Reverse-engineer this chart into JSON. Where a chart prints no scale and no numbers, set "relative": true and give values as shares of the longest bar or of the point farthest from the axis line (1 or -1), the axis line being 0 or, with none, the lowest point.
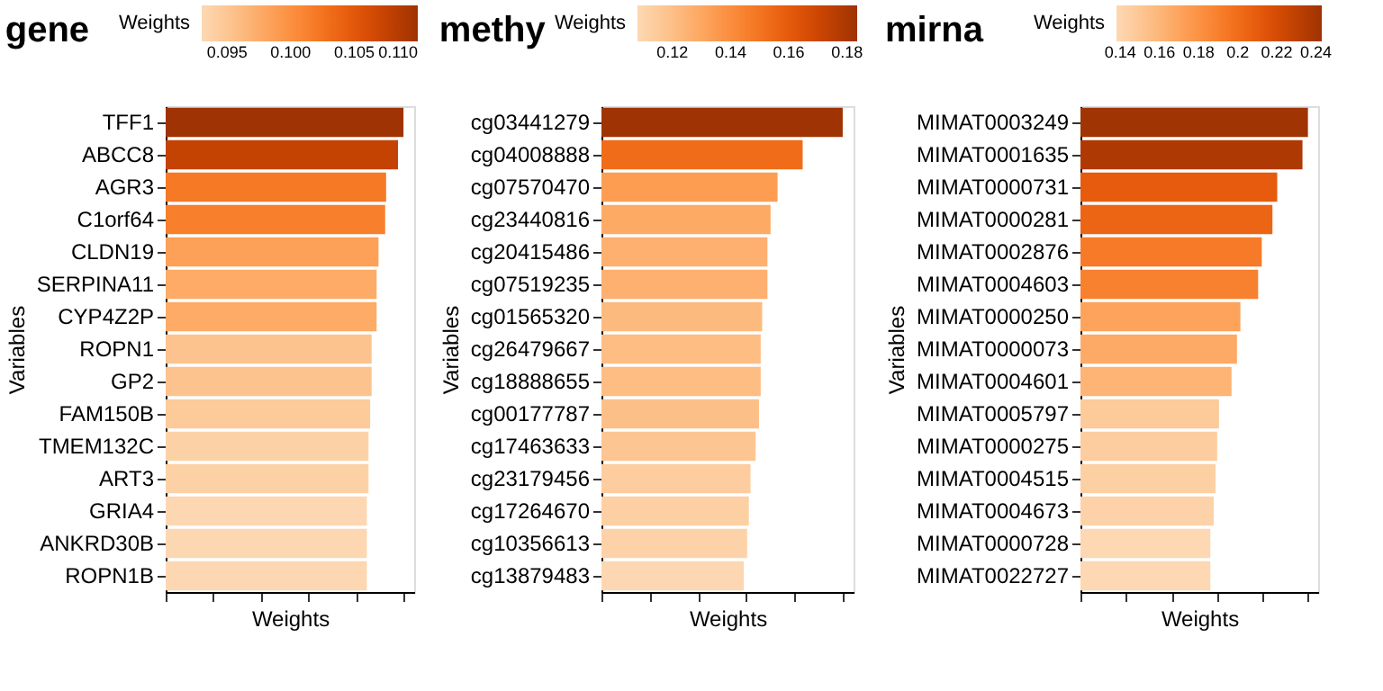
{
  "chart_data": [
    {
      "type": "bar",
      "orientation": "horizontal",
      "relative": true,
      "title": "gene",
      "xlabel": "Weights",
      "ylabel": "Variables",
      "clabel": "Weights",
      "grid": false,
      "tick_labels": "y",
      "categories": [
        "TFF1",
        "ABCC8",
        "AGR3",
        "C1orf64",
        "CLDN19",
        "SERPINA11",
        "CYP4Z2P",
        "ROPN1",
        "GP2",
        "FAM150B",
        "TMEM132C",
        "ART3",
        "GRIA4",
        "ANKRD30B",
        "ROPN1B"
      ],
      "values": [
        1,
        0.977,
        0.927,
        0.923,
        0.895,
        0.887,
        0.887,
        0.866,
        0.866,
        0.86,
        0.853,
        0.853,
        0.846,
        0.846,
        0.846
      ],
      "cvalues": [
        0.11,
        0.1075,
        0.102,
        0.1015,
        0.0985,
        0.0976,
        0.0976,
        0.0953,
        0.0953,
        0.0946,
        0.0938,
        0.0938,
        0.0931,
        0.0931,
        0.0931
      ],
      "clim": [
        0.093,
        0.11
      ],
      "cticks": [
        0.095,
        {
          "value": 0.1,
          "label": "0.100"
        },
        0.105,
        {
          "value": 0.11,
          "label": "0.110"
        }
      ]
    },
    {
      "type": "bar",
      "orientation": "horizontal",
      "relative": true,
      "title": "methy",
      "xlabel": "Weights",
      "ylabel": "Variables",
      "clabel": "Weights",
      "grid": false,
      "tick_labels": "y",
      "categories": [
        "cg03441279",
        "cg04008888",
        "cg07570470",
        "cg23440816",
        "cg20415486",
        "cg07519235",
        "cg01565320",
        "cg26479667",
        "cg18888655",
        "cg00177787",
        "cg17463633",
        "cg23179456",
        "cg17264670",
        "cg10356613",
        "cg13879483"
      ],
      "values": [
        1,
        0.834,
        0.73,
        0.701,
        0.688,
        0.688,
        0.666,
        0.66,
        0.66,
        0.653,
        0.639,
        0.618,
        0.611,
        0.604,
        0.59
      ],
      "cvalues": [
        0.1835,
        0.153,
        0.134,
        0.1287,
        0.1262,
        0.1262,
        0.1223,
        0.1211,
        0.1211,
        0.1198,
        0.1172,
        0.1134,
        0.1121,
        0.1109,
        0.1083
      ],
      "clim": [
        0.108,
        0.1835
      ],
      "cticks": [
        0.12,
        0.14,
        0.16,
        0.18
      ]
    },
    {
      "type": "bar",
      "orientation": "horizontal",
      "relative": true,
      "title": "mirna",
      "xlabel": "Weights",
      "ylabel": "Variables",
      "clabel": "Weights",
      "grid": false,
      "tick_labels": "y",
      "categories": [
        "MIMAT0003249",
        "MIMAT0001635",
        "MIMAT0000731",
        "MIMAT0000281",
        "MIMAT0002876",
        "MIMAT0004603",
        "MIMAT0000250",
        "MIMAT0000073",
        "MIMAT0004601",
        "MIMAT0005797",
        "MIMAT0000275",
        "MIMAT0004515",
        "MIMAT0004673",
        "MIMAT0000728",
        "MIMAT0022727"
      ],
      "values": [
        1,
        0.976,
        0.865,
        0.844,
        0.797,
        0.781,
        0.703,
        0.688,
        0.664,
        0.609,
        0.601,
        0.594,
        0.586,
        0.571,
        0.571
      ],
      "cvalues": [
        0.2424,
        0.2367,
        0.2096,
        0.2045,
        0.1932,
        0.1894,
        0.1705,
        0.1667,
        0.161,
        0.1477,
        0.1458,
        0.1439,
        0.142,
        0.1383,
        0.1383
      ],
      "clim": [
        0.138,
        0.243
      ],
      "cticks": [
        0.14,
        0.16,
        0.18,
        0.2,
        0.22,
        0.24
      ]
    }
  ]
}
